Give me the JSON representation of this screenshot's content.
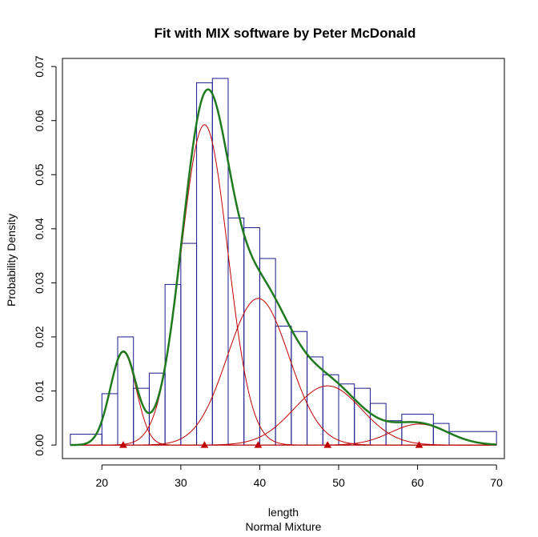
{
  "chart_data": {
    "type": "line",
    "title": "Fit with MIX software by Peter McDonald",
    "xlabel": "length",
    "sublabel": "Normal Mixture",
    "ylabel": "Probability Density",
    "xlim": [
      15,
      71
    ],
    "ylim": [
      -0.0025,
      0.0715
    ],
    "x_ticks": [
      20,
      30,
      40,
      50,
      60,
      70
    ],
    "y_ticks": [
      0.0,
      0.01,
      0.02,
      0.03,
      0.04,
      0.05,
      0.06,
      0.07
    ],
    "y_tick_labels": [
      "0.00",
      "0.01",
      "0.02",
      "0.03",
      "0.04",
      "0.05",
      "0.06",
      "0.07"
    ],
    "histogram": {
      "color": "#1a1a8c",
      "breaks": [
        16,
        20,
        22,
        24,
        26,
        28,
        30,
        32,
        34,
        36,
        38,
        40,
        42,
        44,
        46,
        48,
        50,
        52,
        54,
        56,
        58,
        62,
        64,
        70
      ],
      "densities": [
        0.002,
        0.0095,
        0.02,
        0.0105,
        0.0133,
        0.0297,
        0.0373,
        0.067,
        0.0678,
        0.042,
        0.0402,
        0.0345,
        0.022,
        0.021,
        0.0163,
        0.013,
        0.0113,
        0.0105,
        0.0077,
        0.0045,
        0.0057,
        0.004,
        0.0025
      ]
    },
    "components": {
      "color": "#c00000",
      "series": [
        {
          "mean": 22.7,
          "sd": 1.65,
          "proportion": 0.071
        },
        {
          "mean": 33.0,
          "sd": 2.95,
          "proportion": 0.438
        },
        {
          "mean": 39.8,
          "sd": 3.9,
          "proportion": 0.265
        },
        {
          "mean": 48.6,
          "sd": 4.3,
          "proportion": 0.118
        },
        {
          "mean": 60.2,
          "sd": 3.6,
          "proportion": 0.035
        }
      ]
    },
    "mixture": {
      "color": "#1f7a1f"
    },
    "grid": false,
    "legend": "none"
  }
}
